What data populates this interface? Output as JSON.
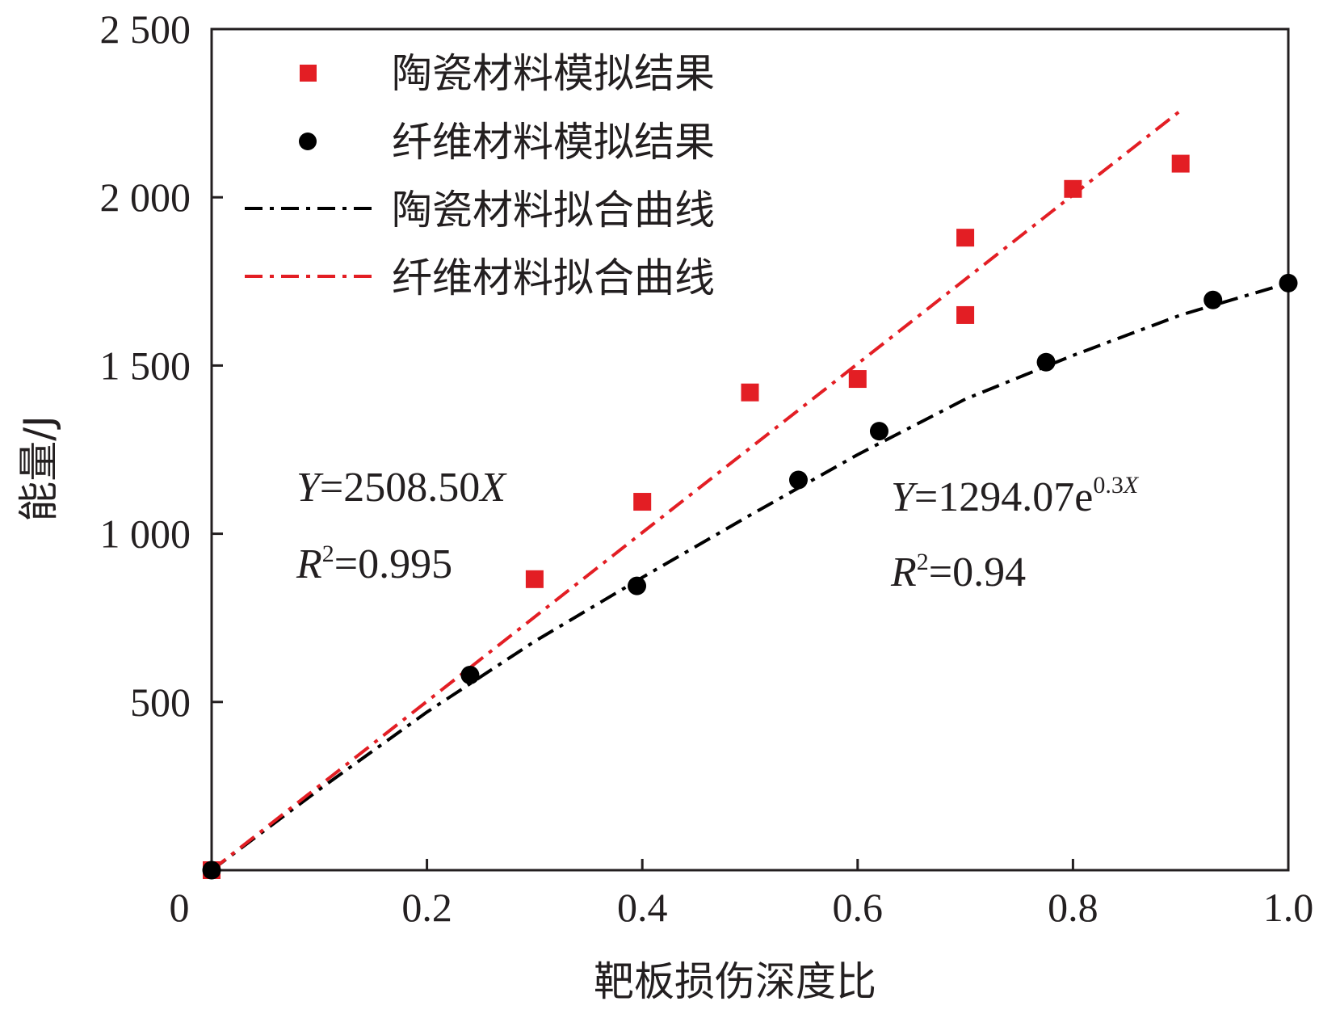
{
  "chart_data": {
    "type": "scatter",
    "xlabel": "靶板损伤深度比",
    "ylabel": "能量/J",
    "xlim": [
      0,
      1.0
    ],
    "ylim": [
      0,
      2500
    ],
    "x_ticks": [
      0,
      0.2,
      0.4,
      0.6,
      0.8,
      1.0
    ],
    "x_tick_labels": [
      "0",
      "0.2",
      "0.4",
      "0.6",
      "0.8",
      "1.0"
    ],
    "y_ticks": [
      500,
      1000,
      1500,
      2000,
      2500
    ],
    "y_tick_labels": [
      "500",
      "1 000",
      "1 500",
      "2 000",
      "2 500"
    ],
    "grid": false,
    "legend_position": "top-left",
    "series": [
      {
        "name": "陶瓷材料模拟结果",
        "kind": "scatter",
        "marker": "square",
        "color": "#e31e24",
        "x": [
          0,
          0.3,
          0.4,
          0.5,
          0.6,
          0.7,
          0.7,
          0.8,
          0.9
        ],
        "y": [
          0,
          865,
          1095,
          1420,
          1460,
          1880,
          1650,
          2025,
          2100
        ]
      },
      {
        "name": "纤维材料模拟结果",
        "kind": "scatter",
        "marker": "circle",
        "color": "#000000",
        "x": [
          0,
          0.24,
          0.395,
          0.545,
          0.62,
          0.775,
          0.93,
          1.0
        ],
        "y": [
          0,
          580,
          845,
          1160,
          1305,
          1510,
          1695,
          1745
        ]
      },
      {
        "name": "陶瓷材料拟合曲线",
        "kind": "line",
        "dash": "dash-dot",
        "color": "#000000",
        "x": [
          0,
          0.1,
          0.2,
          0.3,
          0.4,
          0.5,
          0.6,
          0.7,
          0.8,
          0.9,
          1.0
        ],
        "y": [
          0,
          240,
          470,
          680,
          870,
          1055,
          1235,
          1400,
          1530,
          1650,
          1745
        ]
      },
      {
        "name": "纤维材料拟合曲线",
        "kind": "line",
        "dash": "dash-dot",
        "color": "#e31e24",
        "x": [
          0,
          0.9
        ],
        "y": [
          0,
          2258
        ]
      }
    ],
    "annotations": [
      {
        "id": "eq_left",
        "equation": {
          "var": "Y",
          "eq": "=2508.50",
          "xvar": "X"
        },
        "r2": {
          "var": "R",
          "sup": "2",
          "rest": "=0.995"
        }
      },
      {
        "id": "eq_right",
        "equation": {
          "var": "Y",
          "eq": "=1294.07e",
          "sup": "0.3",
          "supvar": "X"
        },
        "r2": {
          "var": "R",
          "sup": "2",
          "rest": "=0.94"
        }
      }
    ]
  }
}
